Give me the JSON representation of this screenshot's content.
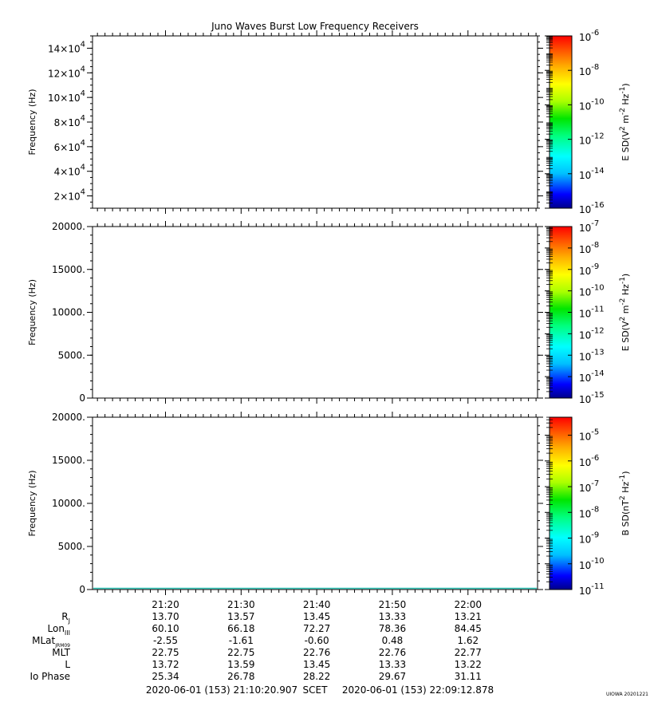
{
  "title": "Juno Waves Burst Low Frequency Receivers",
  "chart_data": [
    {
      "type": "heatmap",
      "ylabel": "Frequency (Hz)",
      "ylim": [
        10000,
        150000
      ],
      "y_tick_values": [
        20000,
        40000,
        60000,
        80000,
        100000,
        120000,
        140000
      ],
      "y_tick_labels": [
        {
          "base": "2×10",
          "exp": "4"
        },
        {
          "base": "4×10",
          "exp": "4"
        },
        {
          "base": "6×10",
          "exp": "4"
        },
        {
          "base": "8×10",
          "exp": "4"
        },
        {
          "base": "10×10",
          "exp": "4"
        },
        {
          "base": "12×10",
          "exp": "4"
        },
        {
          "base": "14×10",
          "exp": "4"
        }
      ],
      "colorbar": {
        "label": {
          "prefix": "E SD(V",
          "mid1": " m",
          "mid2": " Hz",
          "suffix": ")",
          "sup1": "2",
          "sup2": "-2",
          "sup3": "-1"
        },
        "scale": "log",
        "range": [
          -16,
          -6
        ],
        "ticks": [
          {
            "base": "10",
            "exp": "-6",
            "value": -6
          },
          {
            "base": "10",
            "exp": "-8",
            "value": -8
          },
          {
            "base": "10",
            "exp": "-10",
            "value": -10
          },
          {
            "base": "10",
            "exp": "-12",
            "value": -12
          },
          {
            "base": "10",
            "exp": "-14",
            "value": -14
          },
          {
            "base": "10",
            "exp": "-16",
            "value": -16
          }
        ]
      }
    },
    {
      "type": "heatmap",
      "ylabel": "Frequency (Hz)",
      "ylim": [
        0,
        20000
      ],
      "y_tick_values": [
        0,
        5000,
        10000,
        15000,
        20000
      ],
      "y_tick_labels": [
        "0",
        "5000.",
        "10000.",
        "15000.",
        "20000."
      ],
      "colorbar": {
        "label": {
          "prefix": "E SD(V",
          "mid1": " m",
          "mid2": " Hz",
          "suffix": ")",
          "sup1": "2",
          "sup2": "-2",
          "sup3": "-1"
        },
        "scale": "log",
        "range": [
          -15,
          -7
        ],
        "ticks": [
          {
            "base": "10",
            "exp": "-7",
            "value": -7
          },
          {
            "base": "10",
            "exp": "-8",
            "value": -8
          },
          {
            "base": "10",
            "exp": "-9",
            "value": -9
          },
          {
            "base": "10",
            "exp": "-10",
            "value": -10
          },
          {
            "base": "10",
            "exp": "-11",
            "value": -11
          },
          {
            "base": "10",
            "exp": "-12",
            "value": -12
          },
          {
            "base": "10",
            "exp": "-13",
            "value": -13
          },
          {
            "base": "10",
            "exp": "-14",
            "value": -14
          },
          {
            "base": "10",
            "exp": "-15",
            "value": -15
          }
        ]
      }
    },
    {
      "type": "heatmap",
      "ylabel": "Frequency (Hz)",
      "ylim": [
        0,
        20000
      ],
      "y_tick_values": [
        0,
        5000,
        10000,
        15000,
        20000
      ],
      "y_tick_labels": [
        "0",
        "5000.",
        "10000.",
        "15000.",
        "20000."
      ],
      "colorbar": {
        "label": {
          "prefix": "B SD(nT",
          "mid1": " Hz",
          "mid2": "",
          "suffix": ")",
          "sup1": "2",
          "sup2": "-1",
          "sup3": ""
        },
        "scale": "log",
        "range": [
          -11,
          -4.3
        ],
        "ticks": [
          {
            "base": "10",
            "exp": "-5",
            "value": -5
          },
          {
            "base": "10",
            "exp": "-6",
            "value": -6
          },
          {
            "base": "10",
            "exp": "-7",
            "value": -7
          },
          {
            "base": "10",
            "exp": "-8",
            "value": -8
          },
          {
            "base": "10",
            "exp": "-9",
            "value": -9
          },
          {
            "base": "10",
            "exp": "-10",
            "value": -10
          },
          {
            "base": "10",
            "exp": "-11",
            "value": -11
          }
        ]
      }
    }
  ],
  "x_axis": {
    "range_minutes": [
      10.35,
      69.2
    ],
    "ticks": [
      {
        "label": "21:20",
        "minute": 20
      },
      {
        "label": "21:30",
        "minute": 30
      },
      {
        "label": "21:40",
        "minute": 40
      },
      {
        "label": "21:50",
        "minute": 50
      },
      {
        "label": "22:00",
        "minute": 60
      }
    ]
  },
  "ephemeris": {
    "rows": [
      {
        "label": "R",
        "sub": "J",
        "values": [
          "13.70",
          "13.57",
          "13.45",
          "13.33",
          "13.21"
        ]
      },
      {
        "label": "Lon",
        "sub": "III",
        "values": [
          "60.10",
          "66.18",
          "72.27",
          "78.36",
          "84.45"
        ]
      },
      {
        "label": "MLat",
        "sub": "JRM09",
        "values": [
          "-2.55",
          "-1.61",
          "-0.60",
          "0.48",
          "1.62"
        ]
      },
      {
        "label": "MLT",
        "sub": "",
        "values": [
          "22.75",
          "22.75",
          "22.76",
          "22.76",
          "22.77"
        ]
      },
      {
        "label": "L",
        "sub": "",
        "values": [
          "13.72",
          "13.59",
          "13.45",
          "13.33",
          "13.22"
        ]
      },
      {
        "label": "Io Phase",
        "sub": "",
        "values": [
          "25.34",
          "26.78",
          "28.22",
          "29.67",
          "31.11"
        ]
      }
    ]
  },
  "footer": {
    "start": "2020-06-01 (153) 21:10:20.907",
    "scet": "SCET",
    "end": "2020-06-01 (153) 22:09:12.878",
    "stamp": "UIOWA 20201221"
  }
}
